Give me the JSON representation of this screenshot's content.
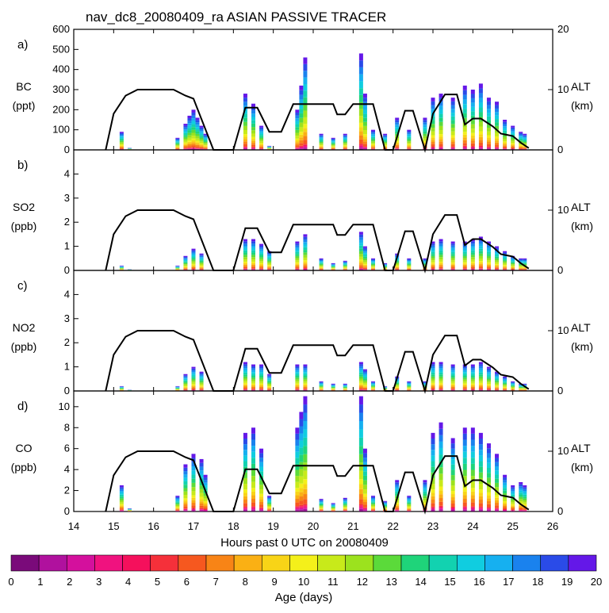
{
  "title": "nav_dc8_20080409_ra ASIAN PASSIVE TRACER",
  "x_axis": {
    "label": "Hours past 0 UTC on 20080409",
    "ticks": [
      "14",
      "15",
      "16",
      "17",
      "18",
      "19",
      "20",
      "21",
      "22",
      "23",
      "24",
      "25",
      "26"
    ]
  },
  "right_axis": {
    "label": "ALT",
    "unit": "(km)",
    "ticks": [
      "0",
      "10",
      "20"
    ]
  },
  "colorbar": {
    "label": "Age (days)",
    "ticks": [
      "0",
      "1",
      "2",
      "3",
      "4",
      "5",
      "6",
      "7",
      "8",
      "9",
      "10",
      "11",
      "12",
      "13",
      "14",
      "15",
      "16",
      "17",
      "18",
      "19",
      "20"
    ],
    "colors": [
      "#7a0a7a",
      "#b0119e",
      "#d4109d",
      "#f0127f",
      "#f5105c",
      "#f5303a",
      "#f6581f",
      "#f88416",
      "#fab014",
      "#f8d417",
      "#f4f01a",
      "#c8ea1a",
      "#9ce21e",
      "#5bda3a",
      "#1fd47a",
      "#12d2b0",
      "#10cde0",
      "#16b0f0",
      "#1a82ee",
      "#2a4be8",
      "#6418e8"
    ]
  },
  "panels": [
    {
      "letter": "a)",
      "species": "BC",
      "unit": "(ppt)",
      "ticks": [
        "0",
        "100",
        "200",
        "300",
        "400",
        "500",
        "600"
      ]
    },
    {
      "letter": "b)",
      "species": "SO2",
      "unit": "(ppb)",
      "ticks": [
        "0",
        "1",
        "2",
        "3",
        "4"
      ]
    },
    {
      "letter": "c)",
      "species": "NO2",
      "unit": "(ppb)",
      "ticks": [
        "0",
        "1",
        "2",
        "3",
        "4"
      ]
    },
    {
      "letter": "d)",
      "species": "CO",
      "unit": "(ppb)",
      "ticks": [
        "0",
        "2",
        "4",
        "6",
        "8",
        "10"
      ]
    }
  ],
  "chart_data": [
    {
      "type": "area",
      "title": "nav_dc8_20080409_ra ASIAN PASSIVE TRACER",
      "panel": "a)",
      "ylabel": "BC (ppt)",
      "xlabel": "Hours past 0 UTC on 20080409",
      "xlim": [
        14,
        26
      ],
      "ylim": [
        0,
        600
      ],
      "y2label": "ALT (km)",
      "y2lim": [
        0,
        20
      ],
      "series": [
        {
          "name": "BC",
          "x": [
            15.2,
            15.4,
            16.6,
            16.8,
            16.9,
            17.0,
            17.1,
            17.2,
            17.3,
            17.5,
            18.3,
            18.5,
            18.7,
            18.9,
            19.6,
            19.7,
            19.8,
            20.2,
            20.5,
            20.8,
            21.2,
            21.3,
            21.5,
            21.8,
            22.1,
            22.4,
            22.8,
            23.0,
            23.2,
            23.5,
            23.8,
            24.0,
            24.2,
            24.4,
            24.6,
            24.8,
            25.0,
            25.2,
            25.3
          ],
          "values": [
            90,
            10,
            60,
            130,
            170,
            200,
            160,
            120,
            80,
            0,
            280,
            230,
            120,
            20,
            200,
            320,
            460,
            80,
            60,
            80,
            480,
            280,
            100,
            80,
            160,
            100,
            160,
            260,
            280,
            260,
            320,
            300,
            330,
            260,
            240,
            150,
            120,
            90,
            80
          ]
        },
        {
          "name": "ALT",
          "x": [
            14.8,
            15.0,
            15.3,
            15.6,
            16.0,
            16.5,
            16.8,
            17.0,
            17.5,
            18.0,
            18.3,
            18.6,
            18.9,
            19.2,
            19.5,
            19.7,
            20.5,
            20.6,
            20.8,
            21.0,
            21.2,
            21.5,
            21.8,
            22.0,
            22.3,
            22.5,
            22.8,
            23.0,
            23.3,
            23.6,
            23.8,
            24.0,
            24.2,
            24.5,
            24.7,
            25.0,
            25.2,
            25.4
          ],
          "values": [
            0,
            6,
            9,
            10,
            10,
            10,
            9,
            8.5,
            0,
            0,
            7,
            7,
            3,
            3,
            7.6,
            7.6,
            7.6,
            5.9,
            5.9,
            7.6,
            7.6,
            7.6,
            0,
            0,
            6.5,
            6.5,
            0,
            6,
            9.2,
            9.2,
            4.2,
            5.2,
            5.2,
            3.9,
            2.7,
            2.3,
            1.2,
            0.3
          ]
        }
      ]
    },
    {
      "type": "area",
      "panel": "b)",
      "ylabel": "SO2 (ppb)",
      "xlim": [
        14,
        26
      ],
      "ylim": [
        0,
        5
      ],
      "y2label": "ALT (km)",
      "y2lim": [
        0,
        20
      ],
      "series": [
        {
          "name": "SO2",
          "x": [
            15.2,
            15.4,
            16.6,
            16.8,
            17.0,
            17.2,
            17.5,
            18.3,
            18.5,
            18.7,
            18.9,
            19.6,
            19.8,
            20.2,
            20.5,
            20.8,
            21.2,
            21.3,
            21.5,
            21.8,
            22.1,
            22.4,
            22.8,
            23.0,
            23.2,
            23.5,
            23.8,
            24.0,
            24.2,
            24.4,
            24.6,
            24.8,
            25.0,
            25.2,
            25.3
          ],
          "values": [
            0.2,
            0.05,
            0.2,
            0.6,
            0.9,
            0.7,
            0,
            1.3,
            1.3,
            1.1,
            0.8,
            1.2,
            1.5,
            0.5,
            0.3,
            0.4,
            1.6,
            1.0,
            0.5,
            0.3,
            0.7,
            0.5,
            0.5,
            1.2,
            1.3,
            1.2,
            1.2,
            1.3,
            1.4,
            1.2,
            1.0,
            0.8,
            0.6,
            0.5,
            0.5
          ]
        }
      ]
    },
    {
      "type": "area",
      "panel": "c)",
      "ylabel": "NO2 (ppb)",
      "xlim": [
        14,
        26
      ],
      "ylim": [
        0,
        5
      ],
      "y2label": "ALT (km)",
      "y2lim": [
        0,
        20
      ],
      "series": [
        {
          "name": "NO2",
          "x": [
            15.2,
            15.4,
            16.6,
            16.8,
            17.0,
            17.2,
            17.5,
            18.3,
            18.5,
            18.7,
            18.9,
            19.6,
            19.8,
            20.2,
            20.5,
            20.8,
            21.2,
            21.3,
            21.5,
            21.8,
            22.1,
            22.4,
            22.8,
            23.0,
            23.2,
            23.5,
            23.8,
            24.0,
            24.2,
            24.4,
            24.6,
            24.8,
            25.0,
            25.2,
            25.3
          ],
          "values": [
            0.2,
            0.05,
            0.2,
            0.7,
            1.0,
            0.8,
            0,
            1.2,
            1.1,
            1.1,
            0.7,
            1.1,
            1.1,
            0.4,
            0.3,
            0.3,
            1.2,
            0.9,
            0.4,
            0.2,
            0.6,
            0.4,
            0.4,
            1.2,
            1.2,
            1.1,
            1.1,
            1.1,
            1.2,
            1.0,
            0.8,
            0.6,
            0.4,
            0.3,
            0.3
          ]
        }
      ]
    },
    {
      "type": "area",
      "panel": "d)",
      "ylabel": "CO (ppb)",
      "xlim": [
        14,
        26
      ],
      "ylim": [
        0,
        11.5
      ],
      "y2label": "ALT (km)",
      "y2lim": [
        0,
        20
      ],
      "series": [
        {
          "name": "CO",
          "x": [
            15.2,
            15.4,
            16.6,
            16.8,
            17.0,
            17.2,
            17.3,
            17.5,
            18.3,
            18.5,
            18.7,
            18.9,
            19.6,
            19.7,
            19.8,
            20.2,
            20.5,
            20.8,
            21.2,
            21.3,
            21.5,
            21.8,
            22.1,
            22.4,
            22.8,
            23.0,
            23.2,
            23.5,
            23.8,
            24.0,
            24.2,
            24.4,
            24.6,
            24.8,
            25.0,
            25.2,
            25.3
          ],
          "values": [
            2.5,
            0.3,
            1.5,
            4.5,
            5.5,
            5.0,
            3.5,
            0,
            7.5,
            8.0,
            6.0,
            1.5,
            8.0,
            9.5,
            11.0,
            1.2,
            0.8,
            1.3,
            11.0,
            6.0,
            1.5,
            1.0,
            3.0,
            1.5,
            3.0,
            7.5,
            8.5,
            7.0,
            8.0,
            8.0,
            7.5,
            6.5,
            5.5,
            3.5,
            2.5,
            2.8,
            2.5
          ]
        }
      ]
    }
  ]
}
